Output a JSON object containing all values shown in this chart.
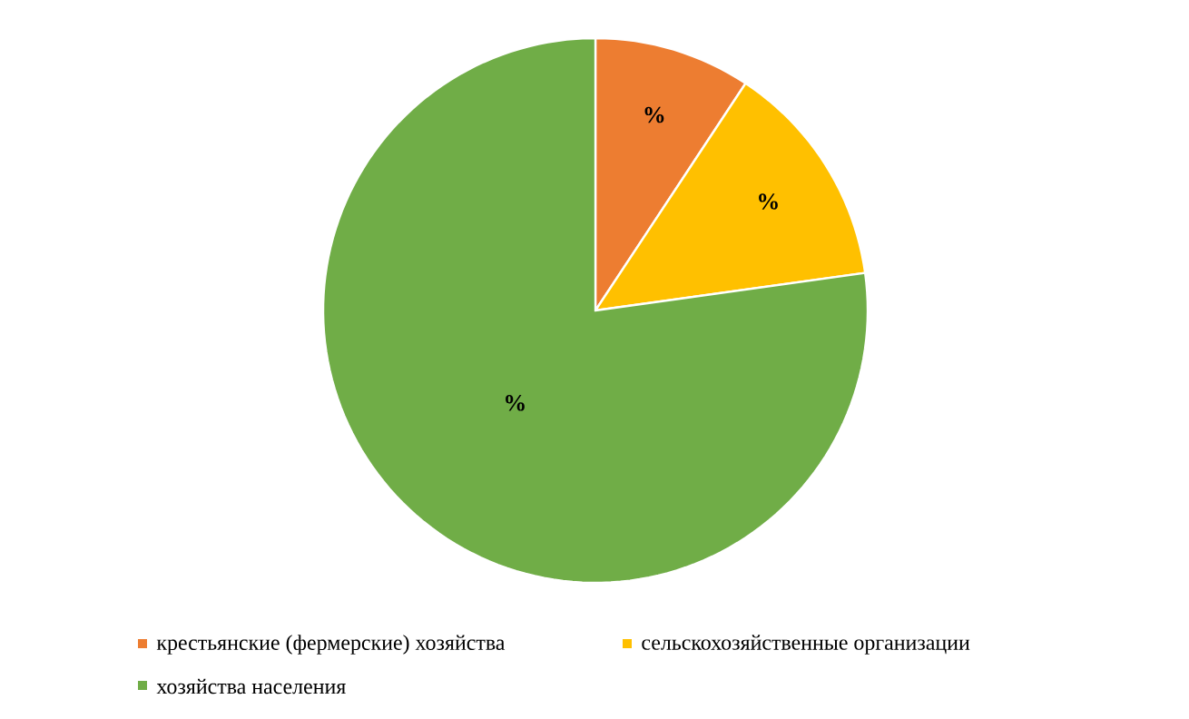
{
  "chart_data": {
    "type": "pie",
    "categories": [
      "крестьянские (фермерские) хозяйства",
      "сельскохозяйственные организации",
      "хозяйства населения"
    ],
    "values": [
      9.3,
      13.5,
      77.2
    ],
    "colors": [
      "#ed7d31",
      "#ffc000",
      "#70ad47"
    ],
    "value_labels": [
      "%",
      "%",
      "%"
    ],
    "legend": "bottom"
  }
}
